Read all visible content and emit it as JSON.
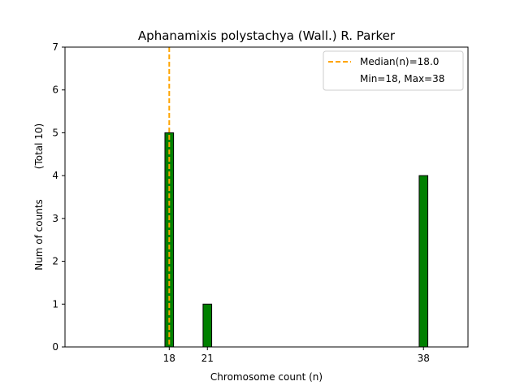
{
  "chart_data": {
    "type": "bar",
    "title": "Aphanamixis polystachya (Wall.) R. Parker",
    "xlabel": "Chromosome count (n)",
    "ylabel": "Num of counts",
    "ylabel_note": "(Total 10)",
    "x_ticks": [
      18,
      21,
      38
    ],
    "y_ticks": [
      0,
      1,
      2,
      3,
      4,
      5,
      6,
      7
    ],
    "xlim": [
      9.8,
      41.5
    ],
    "ylim": [
      0,
      7
    ],
    "bars": [
      {
        "x": 18,
        "value": 5
      },
      {
        "x": 21,
        "value": 1
      },
      {
        "x": 38,
        "value": 4
      }
    ],
    "bar_color": "#008000",
    "bar_edge_color": "#000000",
    "median": {
      "value": 18.0,
      "color": "#ffa500",
      "label": "Median(n)=18.0"
    },
    "range_label": "Min=18, Max=38",
    "legend_position": "top-right",
    "grid": false
  }
}
